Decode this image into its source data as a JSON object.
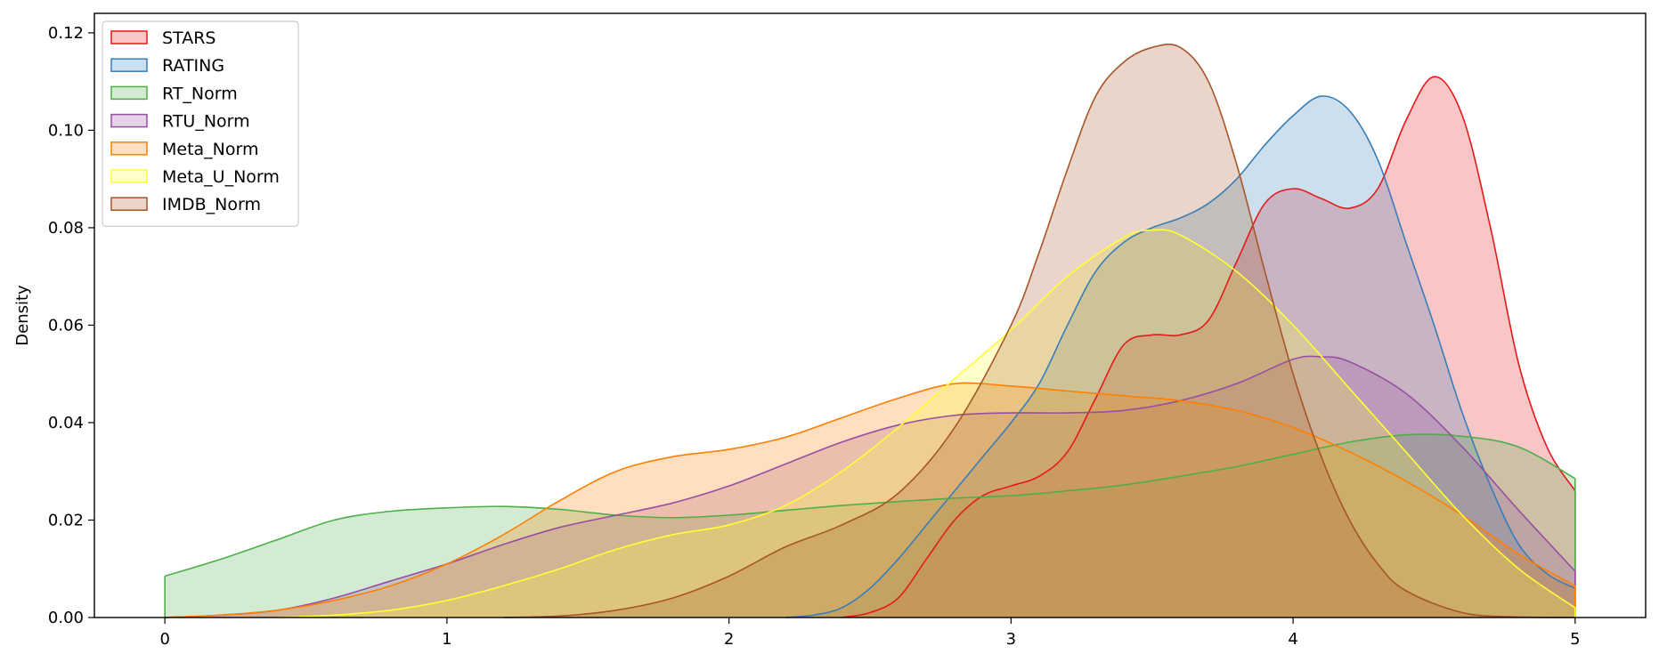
{
  "chart_data": {
    "type": "area",
    "title": "",
    "xlabel": "",
    "ylabel": "Density",
    "xlim": [
      -0.25,
      5.25
    ],
    "ylim": [
      0,
      0.124
    ],
    "xticks": [
      "0",
      "1",
      "2",
      "3",
      "4",
      "5"
    ],
    "yticks": [
      "0.00",
      "0.02",
      "0.04",
      "0.06",
      "0.08",
      "0.10",
      "0.12"
    ],
    "legend_position": "top-left",
    "grid": false,
    "series": [
      {
        "name": "STARS",
        "color": "#e41a1c",
        "points": [
          [
            2.4,
            0
          ],
          [
            2.5,
            0.001
          ],
          [
            2.6,
            0.004
          ],
          [
            2.7,
            0.012
          ],
          [
            2.8,
            0.02
          ],
          [
            2.9,
            0.025
          ],
          [
            3.0,
            0.027
          ],
          [
            3.1,
            0.029
          ],
          [
            3.2,
            0.034
          ],
          [
            3.3,
            0.045
          ],
          [
            3.4,
            0.056
          ],
          [
            3.5,
            0.058
          ],
          [
            3.6,
            0.058
          ],
          [
            3.7,
            0.061
          ],
          [
            3.8,
            0.073
          ],
          [
            3.9,
            0.085
          ],
          [
            4.0,
            0.088
          ],
          [
            4.1,
            0.086
          ],
          [
            4.2,
            0.084
          ],
          [
            4.3,
            0.088
          ],
          [
            4.4,
            0.102
          ],
          [
            4.5,
            0.111
          ],
          [
            4.6,
            0.103
          ],
          [
            4.7,
            0.08
          ],
          [
            4.8,
            0.052
          ],
          [
            4.9,
            0.035
          ],
          [
            5.0,
            0.026
          ]
        ]
      },
      {
        "name": "RATING",
        "color": "#377eb8",
        "points": [
          [
            2.2,
            0
          ],
          [
            2.3,
            0.0005
          ],
          [
            2.4,
            0.002
          ],
          [
            2.5,
            0.006
          ],
          [
            2.6,
            0.012
          ],
          [
            2.7,
            0.019
          ],
          [
            2.8,
            0.026
          ],
          [
            2.9,
            0.033
          ],
          [
            3.0,
            0.04
          ],
          [
            3.1,
            0.048
          ],
          [
            3.2,
            0.06
          ],
          [
            3.3,
            0.071
          ],
          [
            3.4,
            0.077
          ],
          [
            3.5,
            0.08
          ],
          [
            3.6,
            0.082
          ],
          [
            3.7,
            0.085
          ],
          [
            3.8,
            0.09
          ],
          [
            3.9,
            0.097
          ],
          [
            4.0,
            0.103
          ],
          [
            4.1,
            0.107
          ],
          [
            4.2,
            0.104
          ],
          [
            4.3,
            0.094
          ],
          [
            4.4,
            0.077
          ],
          [
            4.5,
            0.06
          ],
          [
            4.6,
            0.042
          ],
          [
            4.7,
            0.027
          ],
          [
            4.8,
            0.015
          ],
          [
            4.9,
            0.009
          ],
          [
            5.0,
            0.006
          ]
        ]
      },
      {
        "name": "RT_Norm",
        "color": "#4daf4a",
        "points": [
          [
            0,
            0.0085
          ],
          [
            0.2,
            0.012
          ],
          [
            0.4,
            0.016
          ],
          [
            0.6,
            0.02
          ],
          [
            0.8,
            0.0218
          ],
          [
            1.0,
            0.0225
          ],
          [
            1.2,
            0.0228
          ],
          [
            1.4,
            0.0222
          ],
          [
            1.6,
            0.021
          ],
          [
            1.8,
            0.0205
          ],
          [
            2.0,
            0.021
          ],
          [
            2.2,
            0.022
          ],
          [
            2.4,
            0.023
          ],
          [
            2.6,
            0.0238
          ],
          [
            2.8,
            0.0245
          ],
          [
            3.0,
            0.025
          ],
          [
            3.2,
            0.026
          ],
          [
            3.4,
            0.0272
          ],
          [
            3.6,
            0.029
          ],
          [
            3.8,
            0.031
          ],
          [
            4.0,
            0.0335
          ],
          [
            4.2,
            0.036
          ],
          [
            4.4,
            0.0375
          ],
          [
            4.6,
            0.0372
          ],
          [
            4.8,
            0.035
          ],
          [
            5.0,
            0.0285
          ]
        ]
      },
      {
        "name": "RTU_Norm",
        "color": "#984ea3",
        "points": [
          [
            0,
            0
          ],
          [
            0.2,
            0.0005
          ],
          [
            0.4,
            0.0015
          ],
          [
            0.6,
            0.004
          ],
          [
            0.8,
            0.0075
          ],
          [
            1.0,
            0.011
          ],
          [
            1.2,
            0.015
          ],
          [
            1.4,
            0.0185
          ],
          [
            1.6,
            0.021
          ],
          [
            1.8,
            0.0235
          ],
          [
            2.0,
            0.027
          ],
          [
            2.2,
            0.0315
          ],
          [
            2.4,
            0.036
          ],
          [
            2.6,
            0.0395
          ],
          [
            2.8,
            0.0415
          ],
          [
            3.0,
            0.042
          ],
          [
            3.2,
            0.042
          ],
          [
            3.4,
            0.0425
          ],
          [
            3.6,
            0.0445
          ],
          [
            3.8,
            0.048
          ],
          [
            4.0,
            0.053
          ],
          [
            4.1,
            0.0535
          ],
          [
            4.2,
            0.0525
          ],
          [
            4.4,
            0.046
          ],
          [
            4.6,
            0.035
          ],
          [
            4.8,
            0.022
          ],
          [
            5.0,
            0.0095
          ]
        ]
      },
      {
        "name": "Meta_Norm",
        "color": "#ff7f00",
        "points": [
          [
            0,
            0
          ],
          [
            0.2,
            0.0005
          ],
          [
            0.4,
            0.0015
          ],
          [
            0.6,
            0.0035
          ],
          [
            0.8,
            0.0065
          ],
          [
            1.0,
            0.011
          ],
          [
            1.2,
            0.017
          ],
          [
            1.4,
            0.024
          ],
          [
            1.6,
            0.03
          ],
          [
            1.8,
            0.033
          ],
          [
            2.0,
            0.0345
          ],
          [
            2.2,
            0.037
          ],
          [
            2.4,
            0.041
          ],
          [
            2.6,
            0.045
          ],
          [
            2.8,
            0.048
          ],
          [
            3.0,
            0.0475
          ],
          [
            3.2,
            0.0465
          ],
          [
            3.4,
            0.0455
          ],
          [
            3.6,
            0.0445
          ],
          [
            3.8,
            0.0425
          ],
          [
            4.0,
            0.039
          ],
          [
            4.2,
            0.034
          ],
          [
            4.4,
            0.028
          ],
          [
            4.6,
            0.021
          ],
          [
            4.8,
            0.013
          ],
          [
            5.0,
            0.0065
          ]
        ]
      },
      {
        "name": "Meta_U_Norm",
        "color": "#ffff33",
        "points": [
          [
            0.4,
            0
          ],
          [
            0.6,
            0.0005
          ],
          [
            0.8,
            0.0015
          ],
          [
            1.0,
            0.0035
          ],
          [
            1.2,
            0.0065
          ],
          [
            1.4,
            0.01
          ],
          [
            1.6,
            0.014
          ],
          [
            1.8,
            0.017
          ],
          [
            2.0,
            0.019
          ],
          [
            2.2,
            0.023
          ],
          [
            2.4,
            0.03
          ],
          [
            2.6,
            0.039
          ],
          [
            2.8,
            0.049
          ],
          [
            3.0,
            0.059
          ],
          [
            3.2,
            0.07
          ],
          [
            3.4,
            0.078
          ],
          [
            3.5,
            0.0795
          ],
          [
            3.6,
            0.0785
          ],
          [
            3.8,
            0.071
          ],
          [
            4.0,
            0.06
          ],
          [
            4.2,
            0.047
          ],
          [
            4.4,
            0.034
          ],
          [
            4.6,
            0.021
          ],
          [
            4.8,
            0.01
          ],
          [
            5.0,
            0.002
          ]
        ]
      },
      {
        "name": "IMDB_Norm",
        "color": "#a65628",
        "points": [
          [
            1.2,
            0
          ],
          [
            1.4,
            0.0003
          ],
          [
            1.6,
            0.0015
          ],
          [
            1.8,
            0.004
          ],
          [
            2.0,
            0.0085
          ],
          [
            2.2,
            0.0145
          ],
          [
            2.4,
            0.019
          ],
          [
            2.6,
            0.0255
          ],
          [
            2.8,
            0.039
          ],
          [
            3.0,
            0.06
          ],
          [
            3.1,
            0.075
          ],
          [
            3.2,
            0.092
          ],
          [
            3.3,
            0.107
          ],
          [
            3.4,
            0.114
          ],
          [
            3.5,
            0.117
          ],
          [
            3.6,
            0.117
          ],
          [
            3.7,
            0.11
          ],
          [
            3.8,
            0.093
          ],
          [
            3.9,
            0.071
          ],
          [
            4.0,
            0.05
          ],
          [
            4.1,
            0.033
          ],
          [
            4.2,
            0.02
          ],
          [
            4.3,
            0.011
          ],
          [
            4.4,
            0.0055
          ],
          [
            4.6,
            0.001
          ],
          [
            4.8,
            0.0001
          ],
          [
            5.0,
            0
          ]
        ]
      }
    ]
  }
}
